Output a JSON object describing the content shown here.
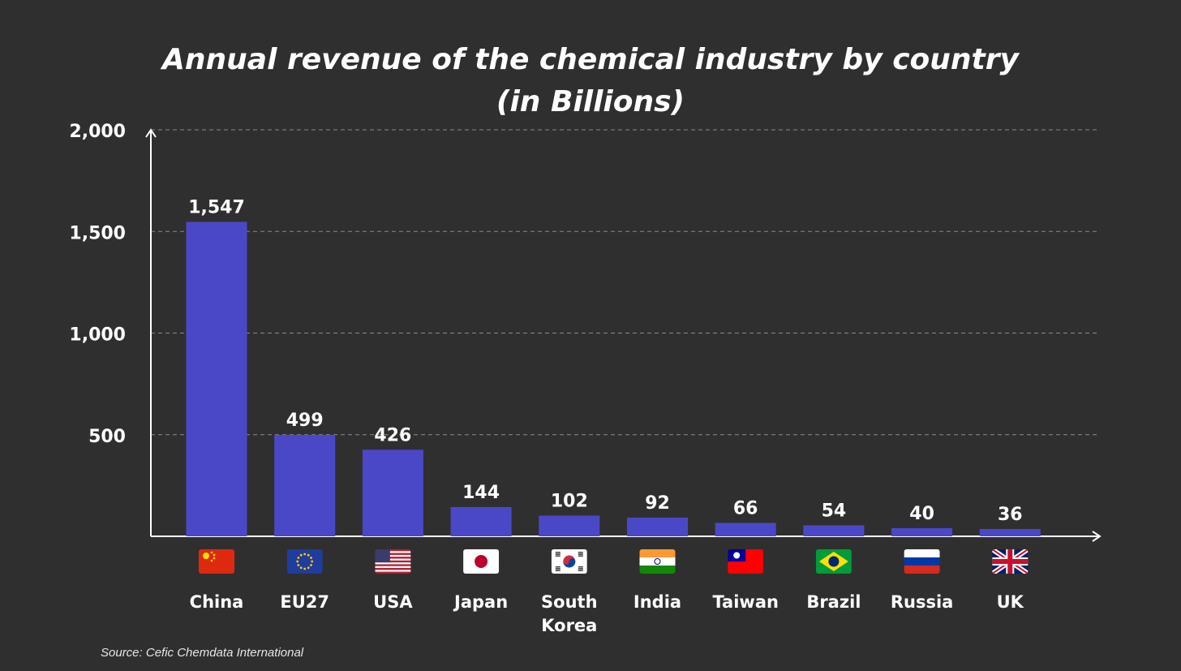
{
  "title_line1": "Annual revenue of the chemical industry by country",
  "title_line2": "(in Billions)",
  "source": "Source: Cefic Chemdata International",
  "colors": {
    "background": "#2f2f2f",
    "bar": "#4b48c8",
    "text": "#ffffff",
    "grid": "#8a8a8a"
  },
  "chart_data": {
    "type": "bar",
    "title": "Annual revenue of the chemical industry by country (in Billions)",
    "categories": [
      [
        "China"
      ],
      [
        "EU27"
      ],
      [
        "USA"
      ],
      [
        "Japan"
      ],
      [
        "South",
        "Korea"
      ],
      [
        "India"
      ],
      [
        "Taiwan"
      ],
      [
        "Brazil"
      ],
      [
        "Russia"
      ],
      [
        "UK"
      ]
    ],
    "flags": [
      "china-flag-icon",
      "eu-flag-icon",
      "usa-flag-icon",
      "japan-flag-icon",
      "south-korea-flag-icon",
      "india-flag-icon",
      "taiwan-flag-icon",
      "brazil-flag-icon",
      "russia-flag-icon",
      "uk-flag-icon"
    ],
    "values": [
      1547,
      499,
      426,
      144,
      102,
      92,
      66,
      54,
      40,
      36
    ],
    "value_labels": [
      "1,547",
      "499",
      "426",
      "144",
      "102",
      "92",
      "66",
      "54",
      "40",
      "36"
    ],
    "yticks": [
      500,
      1000,
      1500,
      2000
    ],
    "ytick_labels": [
      "500",
      "1,000",
      "1,500",
      "2,000"
    ],
    "ylim": [
      0,
      2000
    ],
    "grid": true,
    "xlabel": "",
    "ylabel": ""
  }
}
